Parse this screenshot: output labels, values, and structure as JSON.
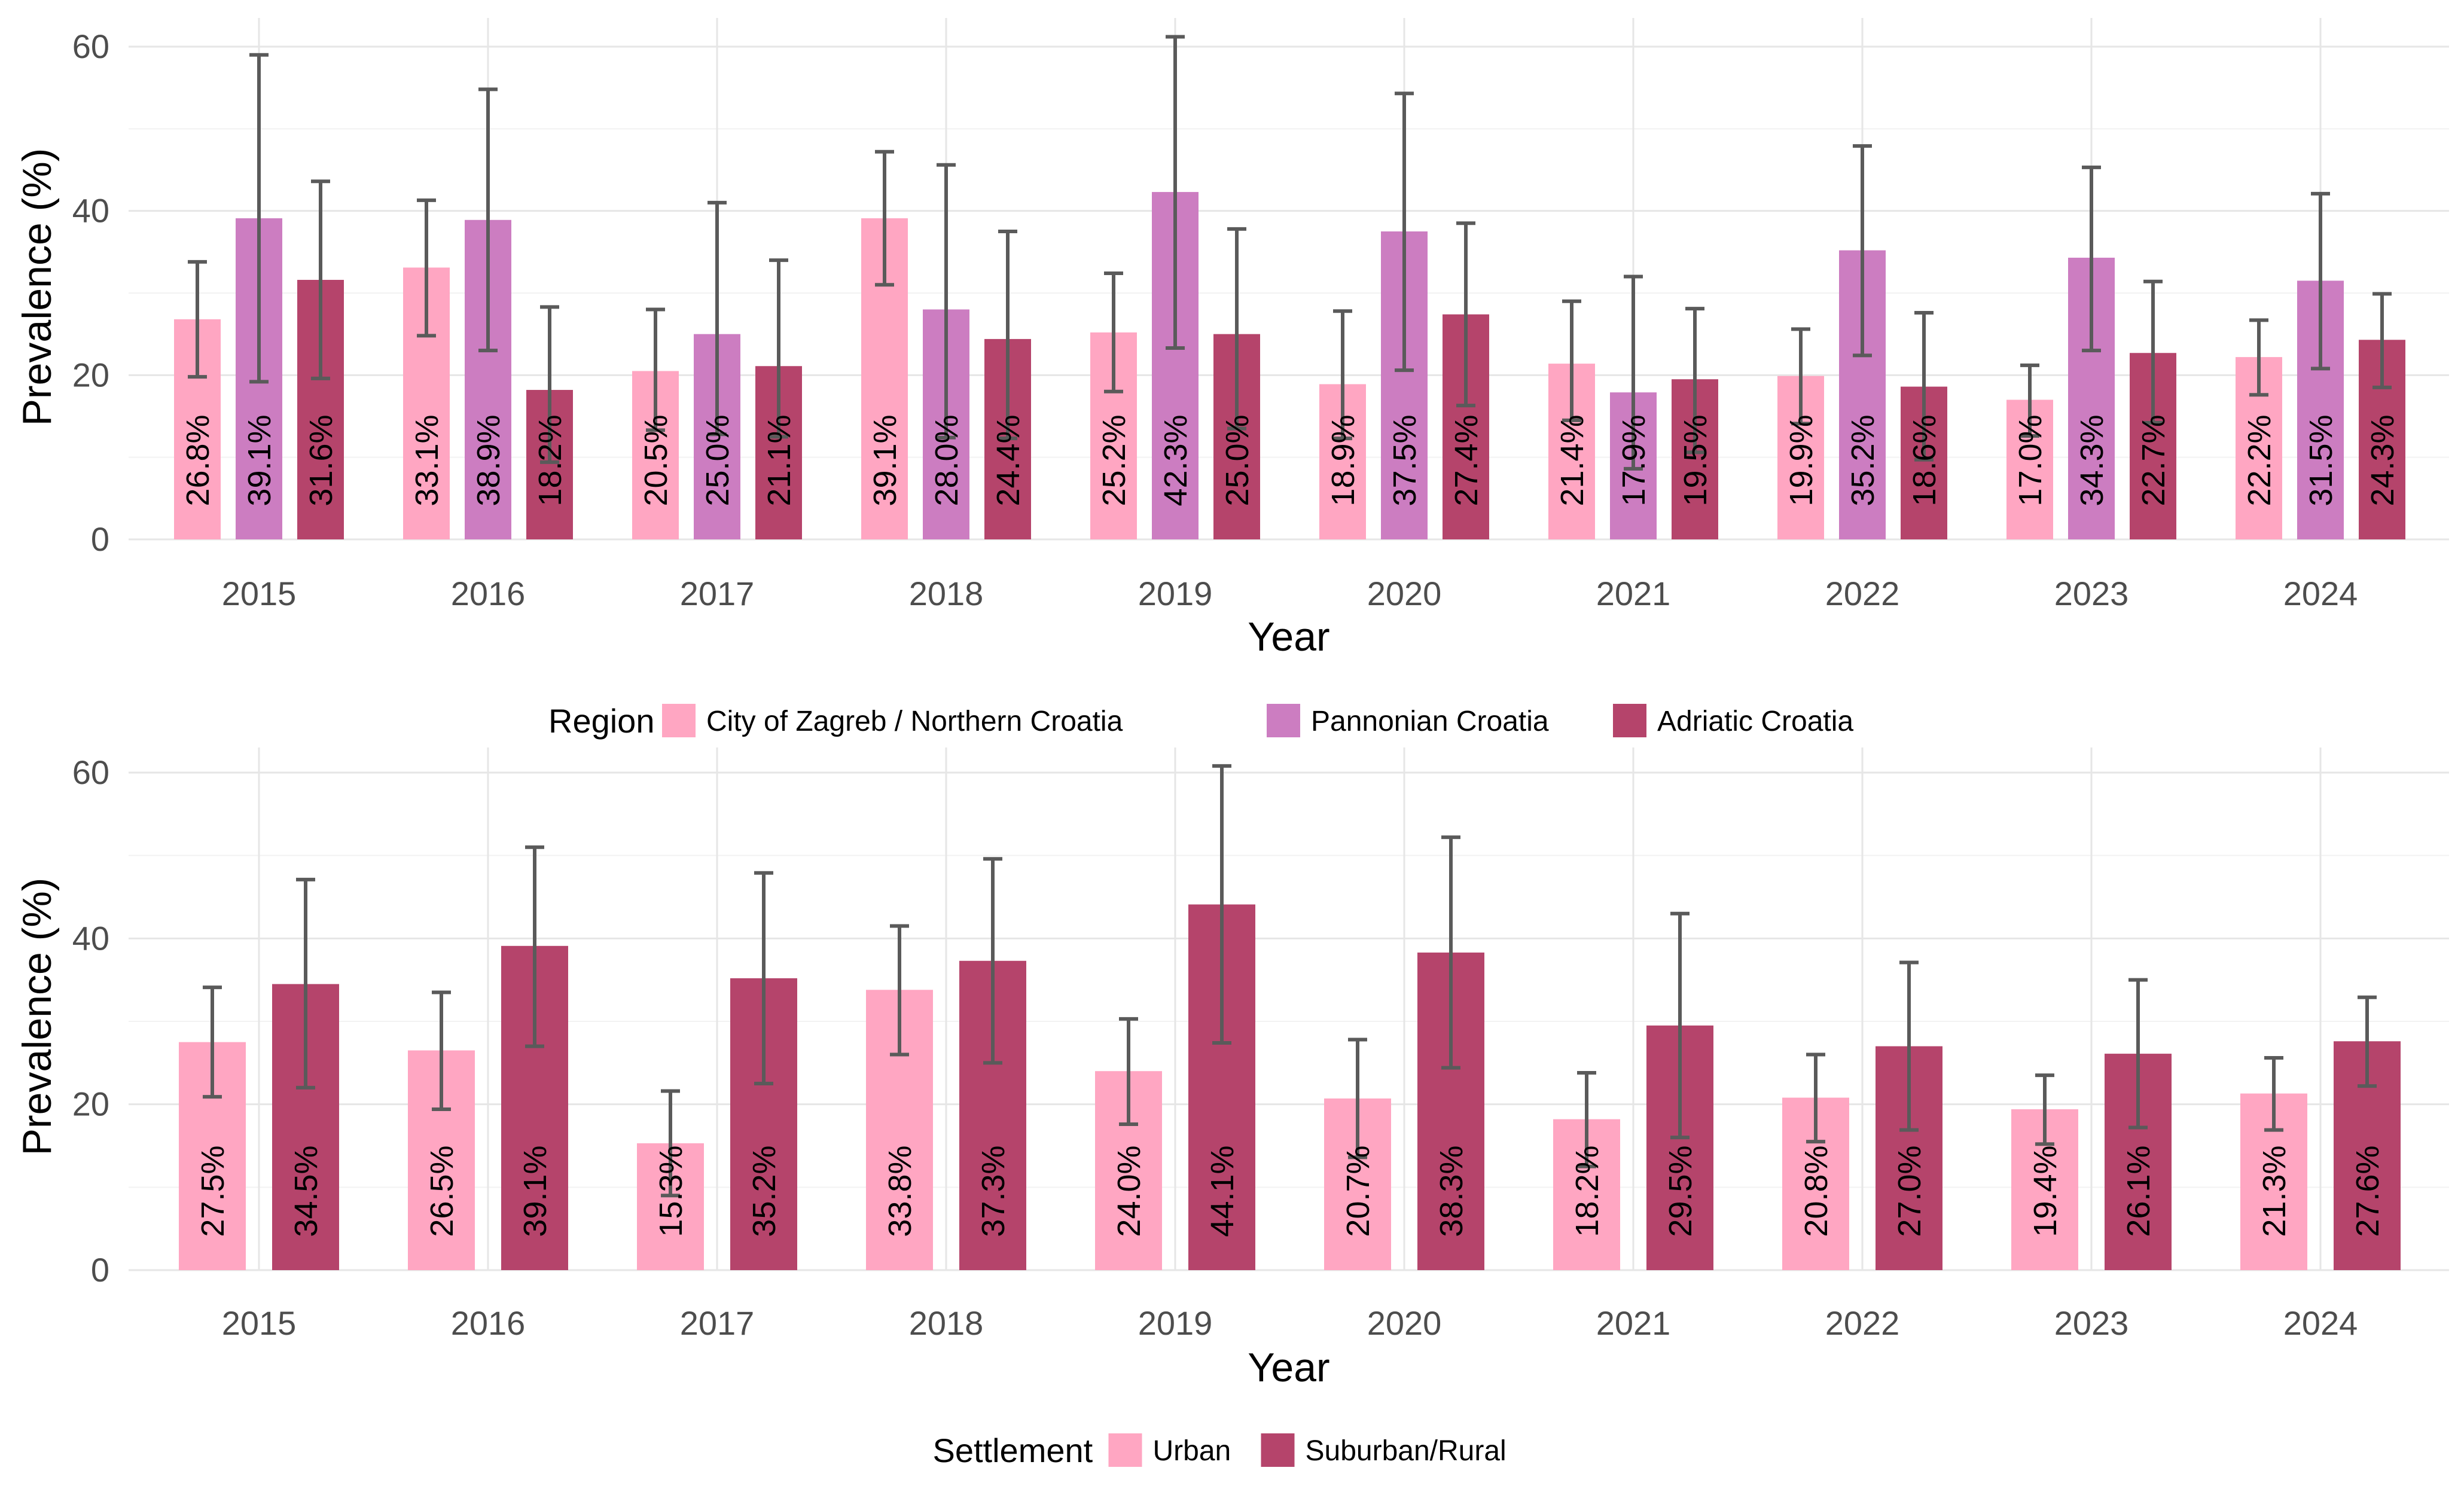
{
  "colors": {
    "zagreb": "#ffa6c2",
    "pannonian": "#cc7dc1",
    "adriatic": "#b5446b",
    "urban": "#ffa6c2",
    "rural": "#b5446b",
    "errorbar": "#5a5a5a",
    "grid": "#e6e6e6"
  },
  "chart_data": [
    {
      "id": "region",
      "type": "bar",
      "xlabel": "Year",
      "ylabel": "Prevalence (%)",
      "ylim": [
        0,
        62
      ],
      "yticks": [
        0,
        20,
        40,
        60
      ],
      "grid": true,
      "categories": [
        "2015",
        "2016",
        "2017",
        "2018",
        "2019",
        "2020",
        "2021",
        "2022",
        "2023",
        "2024"
      ],
      "legend": {
        "title": "Region",
        "position": "bottom"
      },
      "series": [
        {
          "name": "City of Zagreb / Northern Croatia",
          "color_key": "zagreb",
          "values": [
            26.8,
            33.1,
            20.5,
            39.1,
            25.2,
            18.9,
            21.4,
            19.9,
            17.0,
            22.2
          ],
          "labels": [
            "26.8%",
            "33.1%",
            "20.5%",
            "39.1%",
            "25.2%",
            "18.9%",
            "21.4%",
            "19.9%",
            "17.0%",
            "22.2%"
          ],
          "ci_low": [
            19.8,
            24.8,
            13.3,
            31.0,
            18.0,
            12.3,
            14.5,
            14.1,
            12.6,
            17.6
          ],
          "ci_high": [
            33.8,
            41.3,
            28.0,
            47.2,
            32.4,
            27.8,
            29.0,
            25.6,
            21.2,
            26.7
          ]
        },
        {
          "name": "Pannonian Croatia",
          "color_key": "pannonian",
          "values": [
            39.1,
            38.9,
            25.0,
            28.0,
            42.3,
            37.5,
            17.9,
            35.2,
            34.3,
            31.5
          ],
          "labels": [
            "39.1%",
            "38.9%",
            "25.0%",
            "28.0%",
            "42.3%",
            "37.5%",
            "17.9%",
            "35.2%",
            "34.3%",
            "31.5%"
          ],
          "ci_low": [
            19.2,
            23.0,
            12.8,
            12.4,
            23.3,
            20.6,
            8.6,
            22.4,
            23.0,
            20.8
          ],
          "ci_high": [
            59.0,
            54.8,
            41.0,
            45.6,
            61.2,
            54.3,
            32.0,
            47.9,
            45.3,
            42.1
          ]
        },
        {
          "name": "Adriatic Croatia",
          "color_key": "adriatic",
          "values": [
            31.6,
            18.2,
            21.1,
            24.4,
            25.0,
            27.4,
            19.5,
            18.6,
            22.7,
            24.3
          ],
          "labels": [
            "31.6%",
            "18.2%",
            "21.1%",
            "24.4%",
            "25.0%",
            "27.4%",
            "19.5%",
            "18.6%",
            "22.7%",
            "24.3%"
          ],
          "ci_low": [
            19.6,
            9.4,
            12.5,
            12.3,
            13.5,
            16.3,
            10.6,
            9.7,
            14.2,
            18.5
          ],
          "ci_high": [
            43.6,
            28.3,
            34.0,
            37.5,
            37.8,
            38.5,
            28.1,
            27.6,
            31.4,
            29.9
          ]
        }
      ]
    },
    {
      "id": "settlement",
      "type": "bar",
      "xlabel": "Year",
      "ylabel": "Prevalence (%)",
      "ylim": [
        0,
        62
      ],
      "yticks": [
        0,
        20,
        40,
        60
      ],
      "grid": true,
      "categories": [
        "2015",
        "2016",
        "2017",
        "2018",
        "2019",
        "2020",
        "2021",
        "2022",
        "2023",
        "2024"
      ],
      "legend": {
        "title": "Settlement",
        "position": "bottom"
      },
      "series": [
        {
          "name": "Urban",
          "color_key": "urban",
          "values": [
            27.5,
            26.5,
            15.3,
            33.8,
            24.0,
            20.7,
            18.2,
            20.8,
            19.4,
            21.3
          ],
          "labels": [
            "27.5%",
            "26.5%",
            "15.3%",
            "33.8%",
            "24.0%",
            "20.7%",
            "18.2%",
            "20.8%",
            "19.4%",
            "21.3%"
          ],
          "ci_low": [
            20.9,
            19.4,
            9.0,
            26.0,
            17.6,
            13.6,
            12.5,
            15.5,
            15.2,
            16.9
          ],
          "ci_high": [
            34.1,
            33.5,
            21.6,
            41.5,
            30.3,
            27.8,
            23.8,
            26.0,
            23.5,
            25.6
          ]
        },
        {
          "name": "Suburban/Rural",
          "color_key": "rural",
          "values": [
            34.5,
            39.1,
            35.2,
            37.3,
            44.1,
            38.3,
            29.5,
            27.0,
            26.1,
            27.6
          ],
          "labels": [
            "34.5%",
            "39.1%",
            "35.2%",
            "37.3%",
            "44.1%",
            "38.3%",
            "29.5%",
            "27.0%",
            "26.1%",
            "27.6%"
          ],
          "ci_low": [
            22.0,
            27.0,
            22.5,
            25.0,
            27.4,
            24.4,
            16.0,
            16.9,
            17.2,
            22.2
          ],
          "ci_high": [
            47.1,
            51.0,
            47.9,
            49.6,
            60.8,
            52.2,
            43.0,
            37.1,
            35.0,
            32.9
          ]
        }
      ]
    }
  ]
}
